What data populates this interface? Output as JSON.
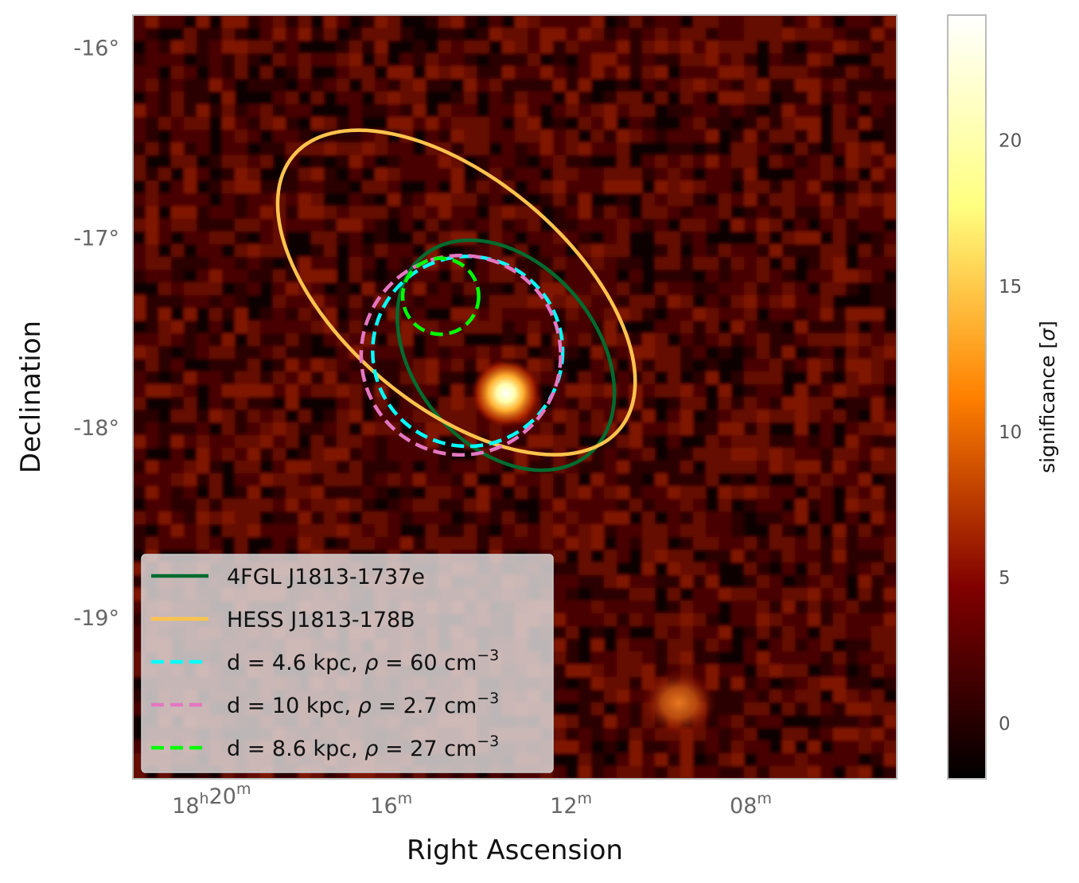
{
  "chart_data": {
    "type": "heatmap",
    "title": "",
    "xlabel": "Right Ascension",
    "ylabel": "Declination",
    "x_ticks": [
      {
        "ra_min": 20,
        "main": "18",
        "sup1": "h",
        "mid": "20",
        "sup2": "m"
      },
      {
        "ra_min": 16,
        "main": "",
        "sup1": "",
        "mid": "16",
        "sup2": "m"
      },
      {
        "ra_min": 12,
        "main": "",
        "sup1": "",
        "mid": "12",
        "sup2": "m"
      },
      {
        "ra_min": 8,
        "main": "",
        "sup1": "",
        "mid": "08",
        "sup2": "m"
      }
    ],
    "xlim_ra_min": [
      21.75,
      4.75
    ],
    "y_ticks": [
      {
        "value": -16,
        "label": "-16°"
      },
      {
        "value": -17,
        "label": "-17°"
      },
      {
        "value": -18,
        "label": "-18°"
      },
      {
        "value": -19,
        "label": "-19°"
      }
    ],
    "ylim_deg": [
      -19.85,
      -15.83
    ],
    "grid": false,
    "colorbar": {
      "title": "significance [σ]",
      "colormap": "afmhot",
      "range": [
        -1.9,
        24.3
      ],
      "ticks": [
        {
          "value": 0,
          "label": "0"
        },
        {
          "value": 5,
          "label": "5"
        },
        {
          "value": 10,
          "label": "10"
        },
        {
          "value": 15,
          "label": "15"
        },
        {
          "value": 20,
          "label": "20"
        }
      ]
    },
    "hotspots": [
      {
        "ra_min": 13.45,
        "dec": -17.82,
        "peak_sigma": 24
      },
      {
        "ra_min": 9.6,
        "dec": -19.45,
        "peak_sigma": 9
      }
    ],
    "regions": [
      {
        "id": "fgl",
        "center_ra_min": 13.45,
        "center_dec": -17.62,
        "semi_major_deg": 0.68,
        "semi_minor_deg": 0.48,
        "angle_deg": 50,
        "color": "#006b2e",
        "style": "solid"
      },
      {
        "id": "hess",
        "center_ra_min": 14.55,
        "center_dec": -17.29,
        "semi_major_deg": 1.12,
        "semi_minor_deg": 0.6,
        "angle_deg": 40,
        "color": "#ffc34d",
        "style": "solid"
      },
      {
        "id": "cyan",
        "center_ra_min": 14.3,
        "center_dec": -17.6,
        "radius_deg": 0.5,
        "color": "#00ffff",
        "style": "dashed"
      },
      {
        "id": "pink",
        "center_ra_min": 14.45,
        "center_dec": -17.62,
        "radius_deg": 0.525,
        "color": "#e377c2",
        "style": "dashed"
      },
      {
        "id": "green",
        "center_ra_min": 14.9,
        "center_dec": -17.31,
        "radius_deg": 0.2,
        "color": "#00ff00",
        "style": "dashed"
      }
    ],
    "legend": {
      "position": "lower-left",
      "entries": [
        {
          "style": "solid",
          "color": "#006b2e",
          "parts": [
            {
              "t": "4FGL J1813-1737e"
            }
          ]
        },
        {
          "style": "solid",
          "color": "#ffc34d",
          "parts": [
            {
              "t": "HESS J1813-178B"
            }
          ]
        },
        {
          "style": "dashed",
          "color": "#00ffff",
          "parts": [
            {
              "t": "d = 4.6 kpc, "
            },
            {
              "t": "ρ",
              "i": true
            },
            {
              "t": " = 60 cm"
            },
            {
              "t": "−3",
              "sup": true
            }
          ]
        },
        {
          "style": "dashed",
          "color": "#e377c2",
          "parts": [
            {
              "t": "d = 10 kpc, "
            },
            {
              "t": "ρ",
              "i": true
            },
            {
              "t": " = 2.7 cm"
            },
            {
              "t": "−3",
              "sup": true
            }
          ]
        },
        {
          "style": "dashed",
          "color": "#00ff00",
          "parts": [
            {
              "t": "d = 8.6 kpc, "
            },
            {
              "t": "ρ",
              "i": true
            },
            {
              "t": " = 27 cm"
            },
            {
              "t": "−3",
              "sup": true
            }
          ]
        }
      ]
    }
  }
}
